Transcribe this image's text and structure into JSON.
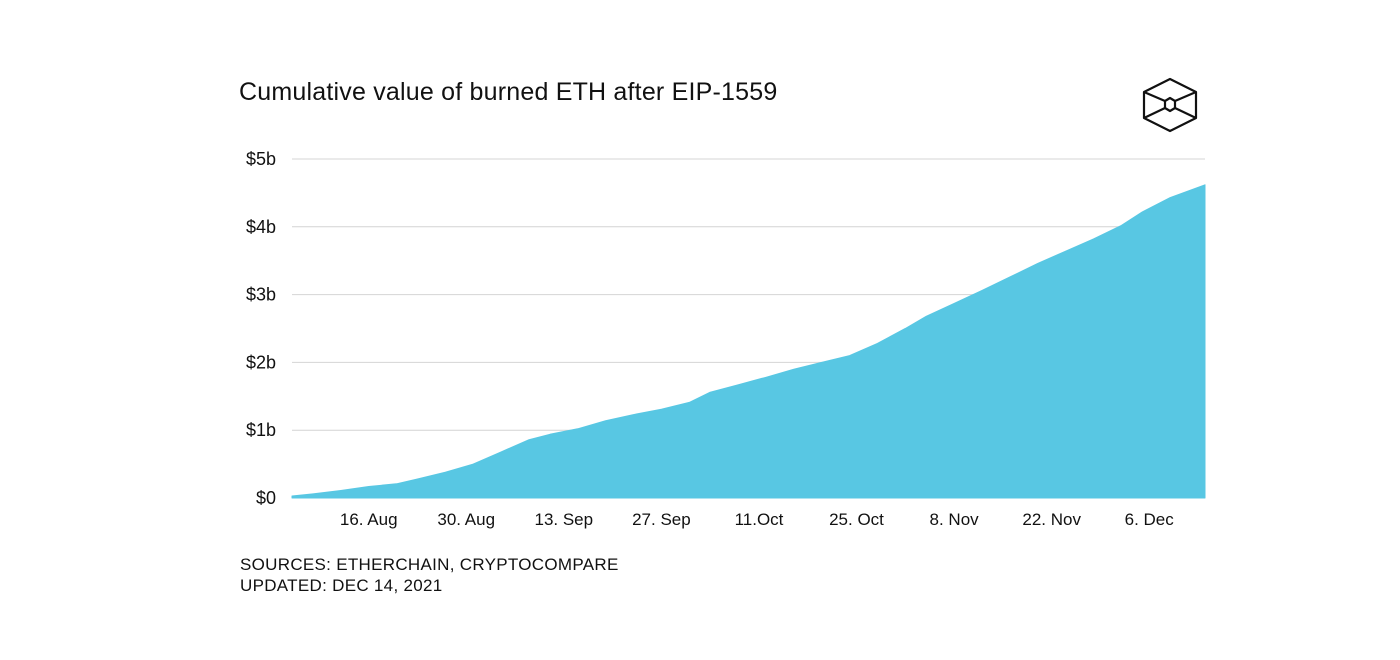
{
  "chart_data": {
    "type": "area",
    "title": "Cumulative value of burned ETH after EIP-1559",
    "xlabel": "",
    "ylabel": "",
    "x_ticks": [
      "16. Aug",
      "30. Aug",
      "13. Sep",
      "27. Sep",
      "11.Oct",
      "25. Oct",
      "8. Nov",
      "22. Nov",
      "6. Dec"
    ],
    "y_ticks": [
      "$0",
      "$1b",
      "$2b",
      "$3b",
      "$4b",
      "$5b"
    ],
    "ylim": [
      0,
      5
    ],
    "y_unit": "billion USD",
    "xlim": [
      "2021-08-05",
      "2021-12-14"
    ],
    "grid": true,
    "legend": "none",
    "fill_color": "#58C7E3",
    "series": [
      {
        "x": [
          "2021-08-05",
          "2021-08-08",
          "2021-08-12",
          "2021-08-16",
          "2021-08-20",
          "2021-08-23",
          "2021-08-27",
          "2021-08-31",
          "2021-09-04",
          "2021-09-08",
          "2021-09-11",
          "2021-09-15",
          "2021-09-19",
          "2021-09-23",
          "2021-09-27",
          "2021-10-01",
          "2021-10-04",
          "2021-10-08",
          "2021-10-12",
          "2021-10-16",
          "2021-10-20",
          "2021-10-24",
          "2021-10-28",
          "2021-11-01",
          "2021-11-04",
          "2021-11-08",
          "2021-11-12",
          "2021-11-16",
          "2021-11-20",
          "2021-11-24",
          "2021-11-28",
          "2021-12-02",
          "2021-12-05",
          "2021-12-09",
          "2021-12-14"
        ],
        "values": [
          0.03,
          0.06,
          0.11,
          0.17,
          0.21,
          0.28,
          0.38,
          0.5,
          0.68,
          0.86,
          0.94,
          1.02,
          1.14,
          1.23,
          1.31,
          1.41,
          1.56,
          1.67,
          1.78,
          1.9,
          2.0,
          2.1,
          2.28,
          2.5,
          2.68,
          2.87,
          3.06,
          3.26,
          3.46,
          3.64,
          3.82,
          4.02,
          4.22,
          4.43,
          4.62
        ]
      }
    ]
  },
  "source_text": "SOURCES: ETHERCHAIN, CRYPTOCOMPARE",
  "updated_text": "UPDATED: DEC 14, 2021",
  "colors": {
    "area": "#58C7E3",
    "grid": "#D4D4D4",
    "text": "#111111"
  },
  "icons": {
    "logo": "hexagon-cube-logo-icon"
  }
}
